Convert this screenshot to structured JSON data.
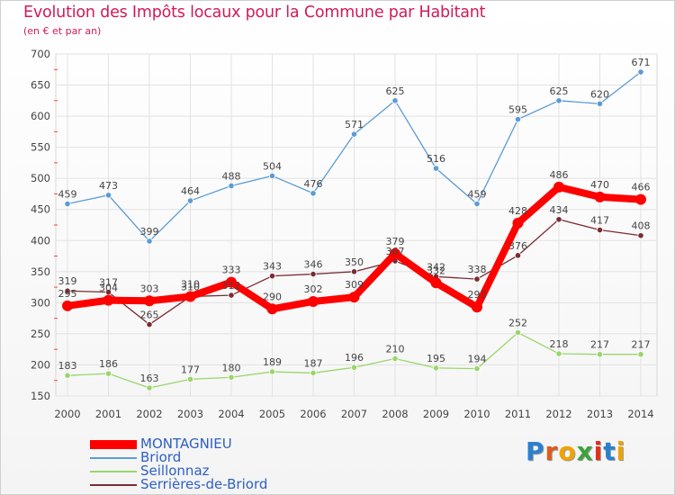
{
  "chart_data": {
    "type": "line",
    "title": "Evolution des Impôts locaux pour la Commune par Habitant",
    "subtitle": "(en € et par an)",
    "categories": [
      "2000",
      "2001",
      "2002",
      "2003",
      "2004",
      "2005",
      "2006",
      "2007",
      "2008",
      "2009",
      "2010",
      "2011",
      "2012",
      "2013",
      "2014"
    ],
    "ylim": [
      150,
      700
    ],
    "yticks": [
      150,
      200,
      250,
      300,
      350,
      400,
      450,
      500,
      550,
      600,
      650,
      700
    ],
    "grid": true,
    "legend_position": "bottom-left",
    "series": [
      {
        "name": "MONTAGNIEU",
        "color": "#ff0000",
        "values": [
          295,
          304,
          303,
          310,
          333,
          290,
          302,
          309,
          379,
          332,
          293,
          428,
          486,
          470,
          466
        ]
      },
      {
        "name": "Briord",
        "color": "#5b9bd5",
        "values": [
          459,
          473,
          399,
          464,
          488,
          504,
          476,
          571,
          625,
          516,
          459,
          595,
          625,
          620,
          671
        ]
      },
      {
        "name": "Seillonnaz",
        "color": "#99d66b",
        "values": [
          183,
          186,
          163,
          177,
          180,
          189,
          187,
          196,
          210,
          195,
          194,
          252,
          218,
          217,
          217
        ]
      },
      {
        "name": "Serrières-de-Briord",
        "color": "#7a2b33",
        "values": [
          319,
          317,
          265,
          310,
          312,
          343,
          346,
          350,
          367,
          342,
          338,
          376,
          434,
          417,
          408
        ]
      }
    ]
  },
  "logo_text": "Proxiti"
}
